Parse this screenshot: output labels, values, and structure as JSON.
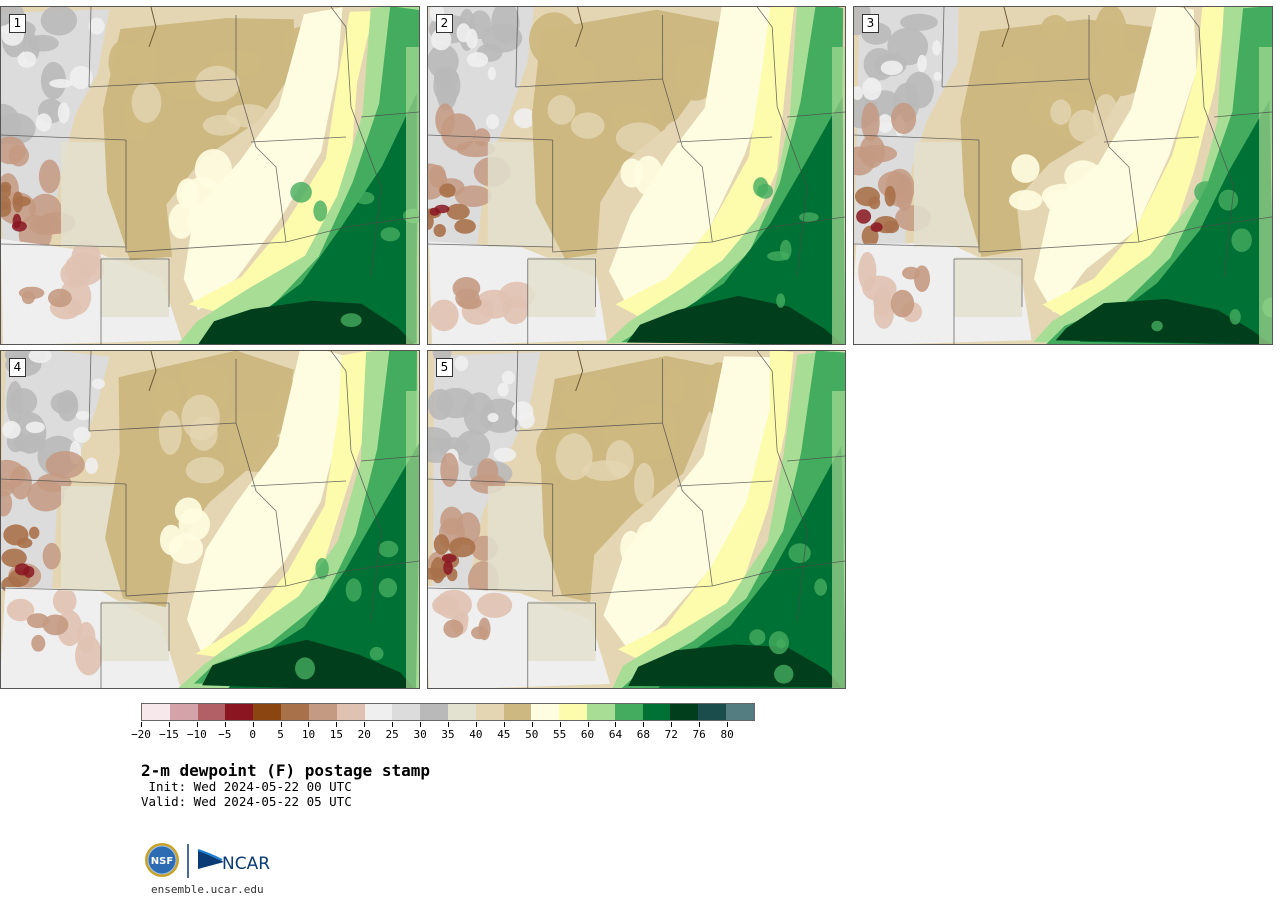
{
  "panels": [
    {
      "label": "1",
      "seed": 3
    },
    {
      "label": "2",
      "seed": 7
    },
    {
      "label": "3",
      "seed": 11
    },
    {
      "label": "4",
      "seed": 17
    },
    {
      "label": "5",
      "seed": 23
    }
  ],
  "colorbar": {
    "colors": [
      "#f7e8ec",
      "#d4a2a9",
      "#b26066",
      "#8a1622",
      "#8b4511",
      "#a8714a",
      "#c49a82",
      "#e0c2b2",
      "#efefef",
      "#dcdcdc",
      "#b9b9b9",
      "#e3e1cf",
      "#e5d6b3",
      "#cdb881",
      "#fffde1",
      "#fdfcad",
      "#a8dd96",
      "#44ac5f",
      "#007134",
      "#003e1c",
      "#1b4d4d",
      "#537d80"
    ],
    "tick_labels": [
      "−20",
      "−15",
      "−10",
      "−5",
      "0",
      "5",
      "10",
      "15",
      "20",
      "25",
      "30",
      "35",
      "40",
      "45",
      "50",
      "55",
      "60",
      "64",
      "68",
      "72",
      "76",
      "80"
    ]
  },
  "title": "2-m dewpoint (F) postage stamp",
  "init_text": " Init: Wed 2024-05-22 00 UTC",
  "valid_text": "Valid: Wed 2024-05-22 05 UTC",
  "logo": {
    "nsf": "NSF",
    "ncar": "NCAR"
  },
  "site": "ensemble.ucar.edu"
}
